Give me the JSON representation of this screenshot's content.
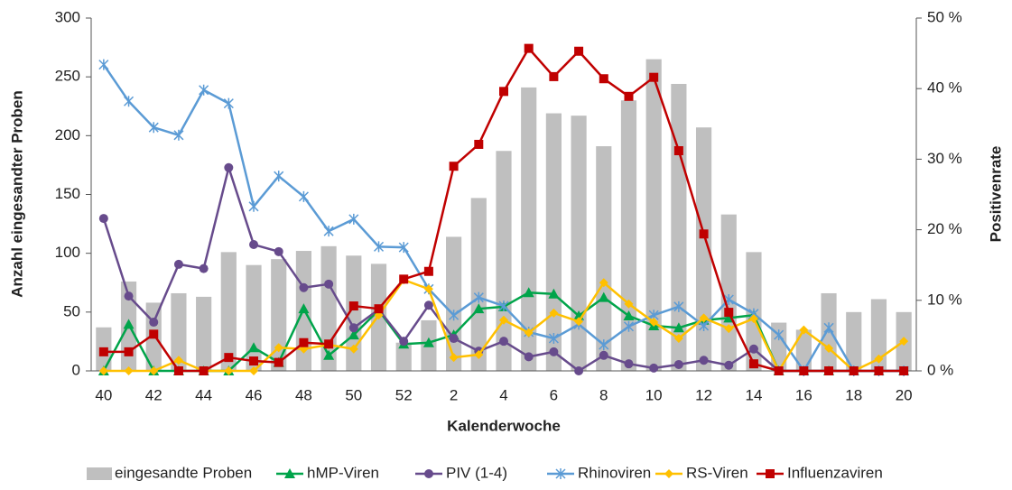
{
  "chart_data": {
    "type": "combo",
    "x_label": "Kalenderwoche",
    "y_label": "Anzahl eingesandter Proben",
    "y2_label": "Positivenrate",
    "categories": [
      40,
      null,
      42,
      null,
      44,
      null,
      46,
      null,
      48,
      null,
      50,
      null,
      52,
      null,
      2,
      null,
      4,
      null,
      6,
      null,
      8,
      null,
      10,
      null,
      12,
      null,
      14,
      null,
      16,
      null,
      18,
      null,
      20
    ],
    "ylim": [
      0,
      300
    ],
    "yticks": [
      0,
      50,
      100,
      150,
      200,
      250,
      300
    ],
    "y2lim": [
      0,
      50
    ],
    "y2ticks": [
      {
        "value": 0,
        "label": "0 %"
      },
      {
        "value": 10,
        "label": "10 %"
      },
      {
        "value": 20,
        "label": "20 %"
      },
      {
        "value": 30,
        "label": "30 %"
      },
      {
        "value": 40,
        "label": "40 %"
      },
      {
        "value": 50,
        "label": "50 %"
      }
    ],
    "legend": "bottom",
    "series": [
      {
        "name": "eingesandte Proben",
        "type": "bar",
        "color": "#bfbfbf",
        "values": [
          37,
          76,
          58,
          66,
          63,
          101,
          90,
          95,
          102,
          106,
          98,
          91,
          24,
          43,
          114,
          147,
          187,
          241,
          219,
          217,
          191,
          230,
          265,
          244,
          207,
          133,
          101,
          41,
          35,
          66,
          50,
          61,
          50
        ]
      },
      {
        "name": "hMP-Viren",
        "type": "line",
        "axis": "y2",
        "color": "#00a44a",
        "marker": "triangle",
        "values": [
          0,
          6.6,
          0,
          0,
          0,
          0,
          3.3,
          1.2,
          8.8,
          2.2,
          5.1,
          8.6,
          3.8,
          4.0,
          5.1,
          8.8,
          9.1,
          11.1,
          10.9,
          7.8,
          10.4,
          7.8,
          6.4,
          6.1,
          7.2,
          7.5,
          7.9,
          0,
          0,
          0,
          0,
          0,
          0
        ]
      },
      {
        "name": "PIV (1-4)",
        "type": "line",
        "axis": "y2",
        "color": "#674b8c",
        "marker": "circle",
        "values": [
          21.6,
          10.6,
          6.9,
          15.1,
          14.5,
          28.8,
          17.9,
          16.9,
          11.8,
          12.3,
          6.1,
          8.7,
          4.2,
          9.3,
          4.6,
          2.8,
          4.2,
          2.0,
          2.7,
          0,
          2.2,
          1.0,
          0.4,
          0.9,
          1.5,
          0.8,
          3.1,
          0,
          0,
          0,
          0,
          0,
          0
        ]
      },
      {
        "name": "Rhinoviren",
        "type": "line",
        "axis": "y2",
        "color": "#5b9bd5",
        "marker": "star",
        "values": [
          43.4,
          38.2,
          34.5,
          33.4,
          39.8,
          37.9,
          23.3,
          27.6,
          24.7,
          19.8,
          21.5,
          17.6,
          17.5,
          11.6,
          7.9,
          10.4,
          9.2,
          5.5,
          4.6,
          6.6,
          3.7,
          6.3,
          7.9,
          9.1,
          6.4,
          10.1,
          8.1,
          5.1,
          0,
          6.1,
          0,
          0,
          0
        ]
      },
      {
        "name": "RS-Viren",
        "type": "line",
        "axis": "y2",
        "color": "#ffc000",
        "marker": "diamond",
        "values": [
          0,
          0,
          0,
          1.5,
          0,
          0,
          0,
          3.3,
          3.1,
          3.7,
          3.1,
          7.9,
          12.9,
          11.6,
          1.9,
          2.3,
          7.2,
          5.4,
          8.2,
          7.0,
          12.5,
          9.5,
          6.9,
          4.6,
          7.5,
          6.0,
          7.4,
          0,
          5.8,
          3.2,
          0,
          1.7,
          4.2
        ]
      },
      {
        "name": "Influenzaviren",
        "type": "line",
        "axis": "y2",
        "color": "#c00000",
        "marker": "square",
        "values": [
          2.7,
          2.7,
          5.2,
          0,
          0,
          1.9,
          1.4,
          1.2,
          4.0,
          3.8,
          9.2,
          8.8,
          13.0,
          14.1,
          29.0,
          32.1,
          39.6,
          45.7,
          41.7,
          45.3,
          41.4,
          38.9,
          41.6,
          31.2,
          19.4,
          8.3,
          1.0,
          0,
          0,
          0,
          0,
          0,
          0
        ]
      }
    ]
  }
}
